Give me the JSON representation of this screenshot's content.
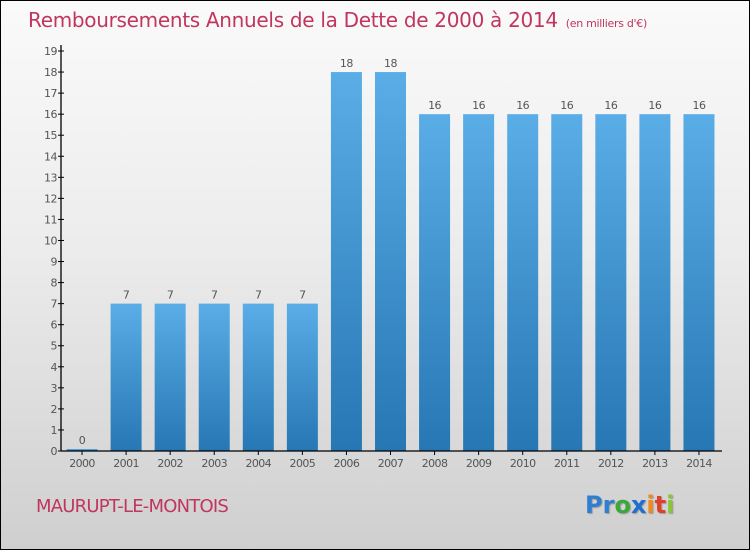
{
  "header": {
    "title": "Remboursements Annuels de la Dette de 2000 à 2014",
    "unit": "(en milliers d'€)"
  },
  "footer": {
    "commune": "MAURUPT-LE-MONTOIS",
    "logo": {
      "letters": [
        {
          "char": "P",
          "color": "#2f7fd0"
        },
        {
          "char": "r",
          "color": "#2f7fd0"
        },
        {
          "char": "o",
          "color": "#3aa83a"
        },
        {
          "char": "x",
          "color": "#1f6fd0"
        },
        {
          "char": "i",
          "color": "#f08a1c"
        },
        {
          "char": "t",
          "color": "#e0402a"
        },
        {
          "char": "i",
          "color": "#8ac43a"
        }
      ]
    }
  },
  "colors": {
    "bar_top": "#5aade6",
    "bar_bottom": "#2677b4",
    "title": "#c0365e",
    "axis": "#000000",
    "label": "#555555"
  },
  "chart_data": {
    "type": "bar",
    "title": "Remboursements Annuels de la Dette de 2000 à 2014",
    "subtitle": "(en milliers d'€)",
    "xlabel": "",
    "ylabel": "",
    "categories": [
      "2000",
      "2001",
      "2002",
      "2003",
      "2004",
      "2005",
      "2006",
      "2007",
      "2008",
      "2009",
      "2010",
      "2011",
      "2012",
      "2013",
      "2014"
    ],
    "values": [
      0,
      7,
      7,
      7,
      7,
      7,
      18,
      18,
      16,
      16,
      16,
      16,
      16,
      16,
      16
    ],
    "data_labels": [
      "0",
      "7",
      "7",
      "7",
      "7",
      "7",
      "18",
      "18",
      "16",
      "16",
      "16",
      "16",
      "16",
      "16",
      "16"
    ],
    "ylim": [
      0,
      19
    ],
    "yticks": [
      0,
      1,
      2,
      3,
      4,
      5,
      6,
      7,
      8,
      9,
      10,
      11,
      12,
      13,
      14,
      15,
      16,
      17,
      18,
      19
    ],
    "grid": false,
    "legend": "none"
  }
}
